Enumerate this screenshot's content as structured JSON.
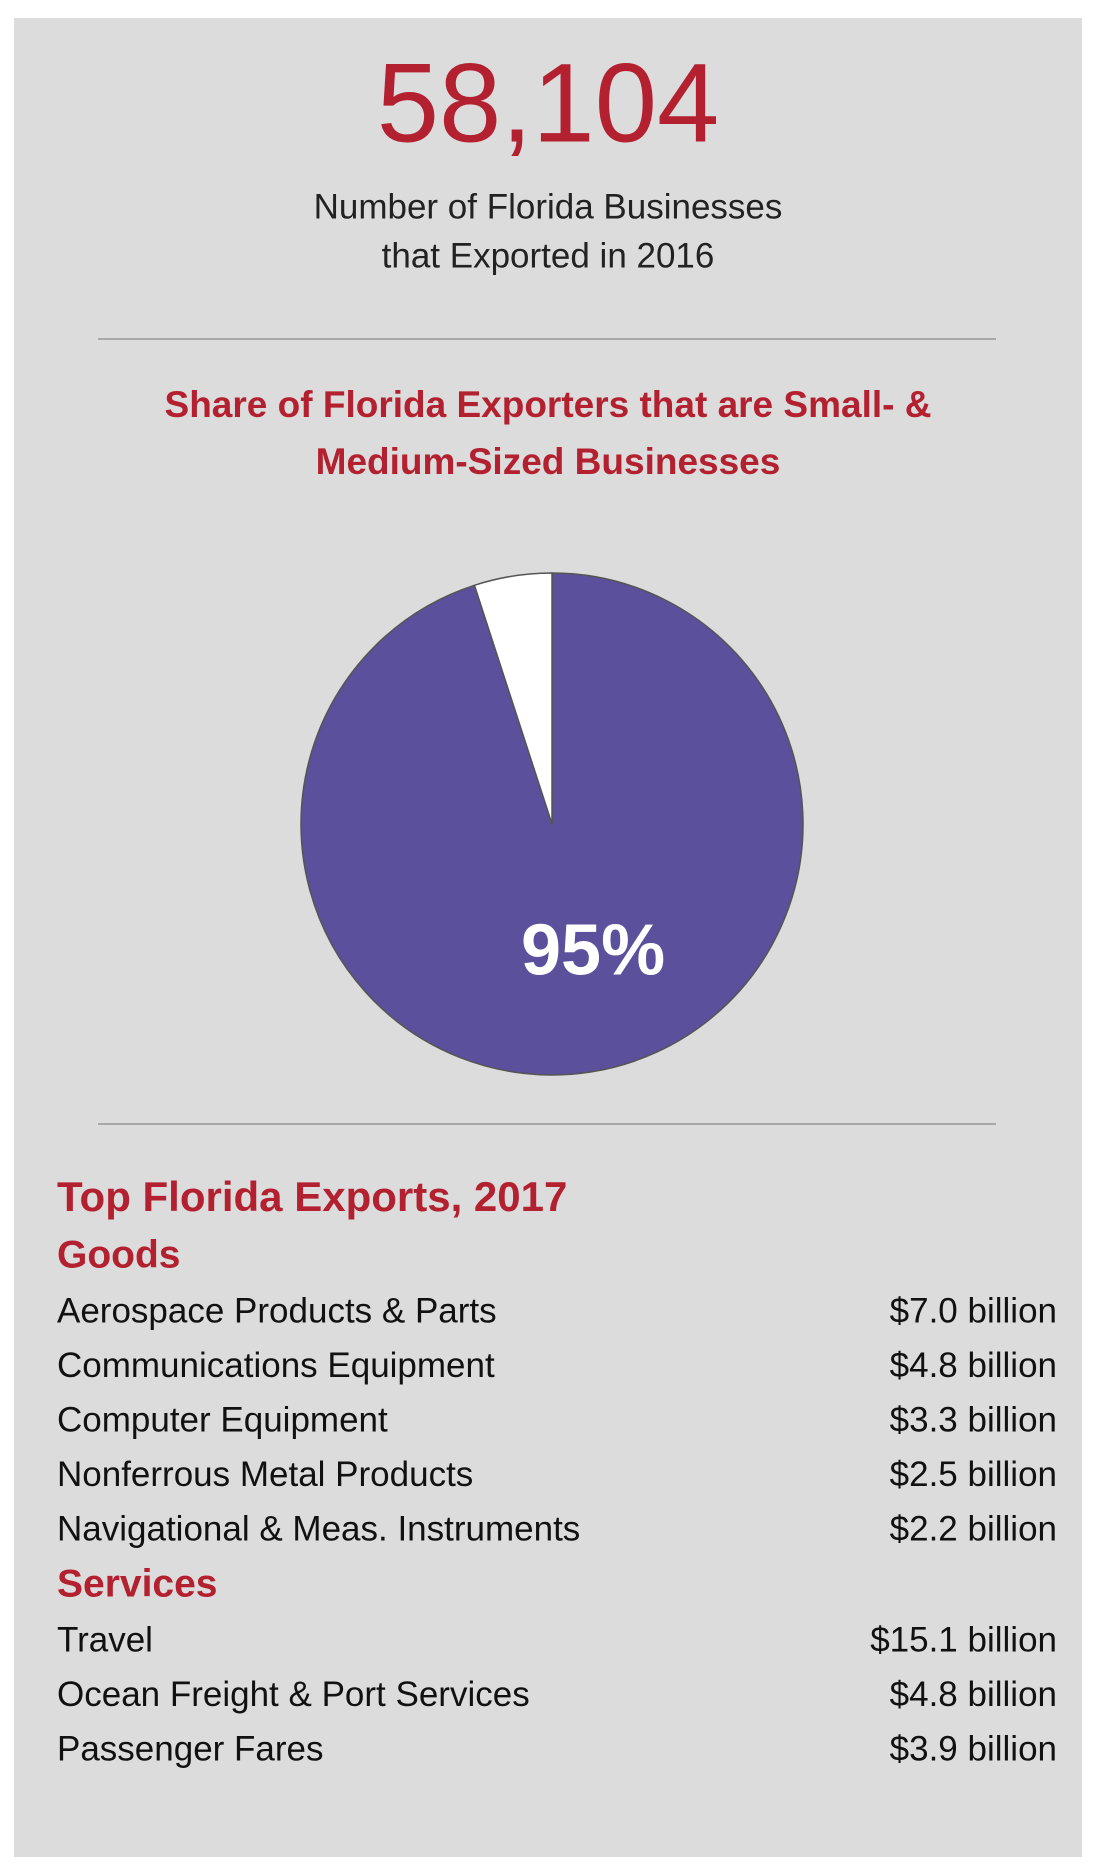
{
  "headline": {
    "number": "58,104",
    "caption": [
      "Number of Florida Businesses",
      "that Exported in 2016"
    ]
  },
  "chart_data": {
    "type": "pie",
    "title": [
      "Share of Florida Exporters that are Small- &",
      "Medium-Sized Businesses"
    ],
    "values": [
      95,
      5
    ],
    "value_labels": [
      "95%",
      null
    ],
    "colors": [
      "#5a509b",
      "#ffffff"
    ]
  },
  "exports": {
    "title": "Top Florida Exports, 2017",
    "sections": [
      {
        "heading": "Goods",
        "items": [
          {
            "name": "Aerospace Products & Parts",
            "value": "$7.0 billion"
          },
          {
            "name": "Communications Equipment",
            "value": "$4.8 billion"
          },
          {
            "name": "Computer Equipment",
            "value": "$3.3 billion"
          },
          {
            "name": "Nonferrous Metal Products",
            "value": "$2.5 billion"
          },
          {
            "name": "Navigational & Meas. Instruments",
            "value": "$2.2 billion"
          }
        ]
      },
      {
        "heading": "Services",
        "items": [
          {
            "name": "Travel",
            "value": "$15.1 billion"
          },
          {
            "name": "Ocean Freight & Port Services",
            "value": "$4.8 billion"
          },
          {
            "name": "Passenger Fares",
            "value": "$3.9 billion"
          }
        ]
      }
    ]
  }
}
